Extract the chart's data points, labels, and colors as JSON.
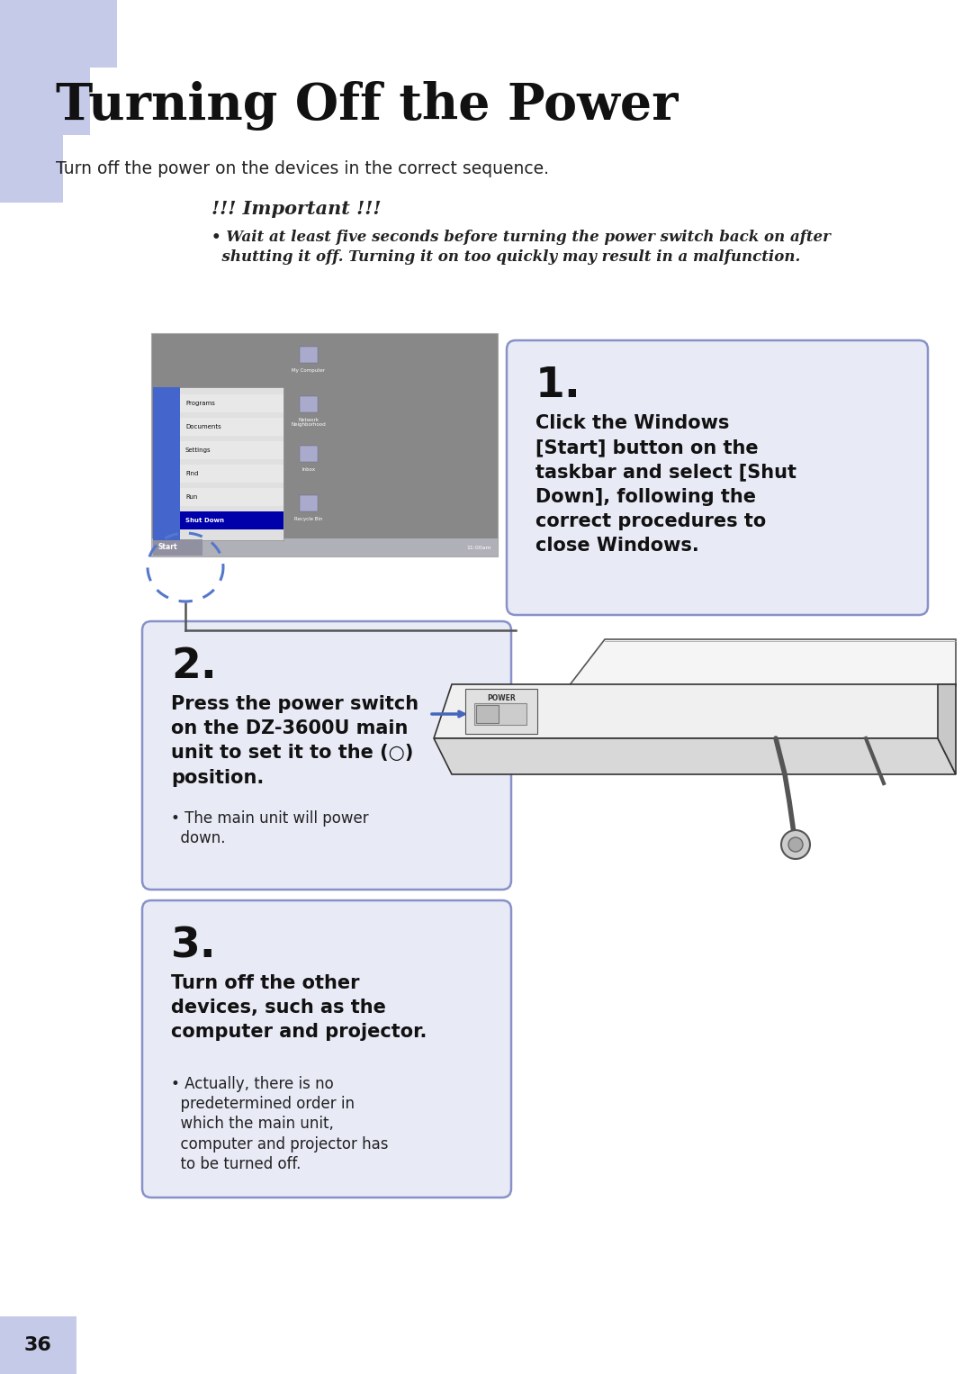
{
  "title": "Turning Off the Power",
  "subtitle": "Turn off the power on the devices in the correct sequence.",
  "important_title": "!!! Important !!!",
  "important_bullet": "Wait at least five seconds before turning the power switch back on after\n  shutting it off. Turning it on too quickly may result in a malfunction.",
  "step1_num": "1.",
  "step1_bold": "Click the Windows\n[Start] button on the\ntaskbar and select [Shut\nDown], following the\ncorrect procedures to\nclose Windows.",
  "step2_num": "2.",
  "step2_bold": "Press the power switch\non the DZ-3600U main\nunit to set it to the (○)\nposition.",
  "step2_bullet": "The main unit will power\n  down.",
  "step3_num": "3.",
  "step3_bold": "Turn off the other\ndevices, such as the\ncomputer and projector.",
  "step3_bullet": "Actually, there is no\n  predetermined order in\n  which the main unit,\n  computer and projector has\n  to be turned off.",
  "page_num": "36",
  "bg_color": "#ffffff",
  "box_fill": "#e8eaf6",
  "box_border": "#8892c8",
  "tab_color": "#c5cae9",
  "title_color": "#111111",
  "text_color": "#222222"
}
